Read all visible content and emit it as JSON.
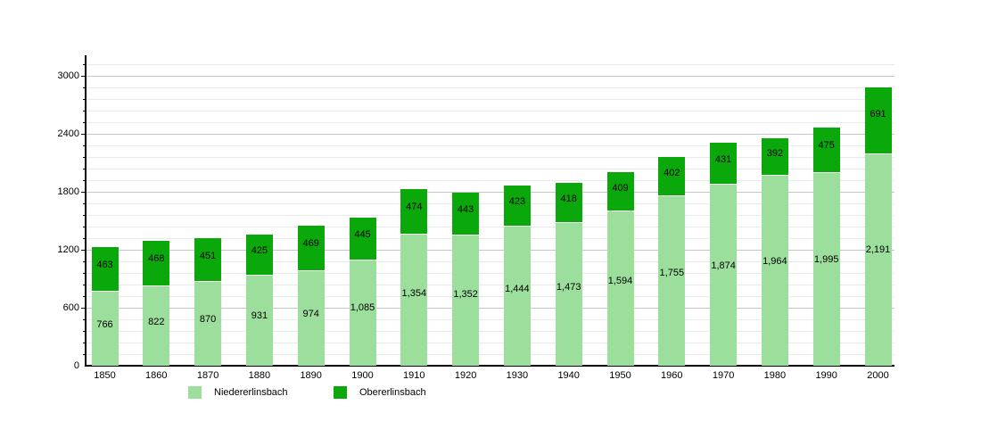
{
  "chart_data": {
    "type": "bar",
    "stacked": true,
    "title": "",
    "xlabel": "",
    "ylabel": "",
    "categories": [
      "1850",
      "1860",
      "1870",
      "1880",
      "1890",
      "1900",
      "1910",
      "1920",
      "1930",
      "1940",
      "1950",
      "1960",
      "1970",
      "1980",
      "1990",
      "2000"
    ],
    "series": [
      {
        "name": "Niedererlinsbach",
        "color": "#9CDF9C",
        "values": [
          766,
          822,
          870,
          931,
          974,
          1085,
          1354,
          1352,
          1444,
          1473,
          1594,
          1755,
          1874,
          1964,
          1995,
          2191
        ],
        "labels": [
          "766",
          "822",
          "870",
          "931",
          "974",
          "1,085",
          "1,354",
          "1,352",
          "1,444",
          "1,473",
          "1,594",
          "1,755",
          "1,874",
          "1,964",
          "1,995",
          "2,191"
        ]
      },
      {
        "name": "Obererlinsbach",
        "color": "#0BA80B",
        "values": [
          463,
          468,
          451,
          425,
          469,
          445,
          474,
          443,
          423,
          418,
          409,
          402,
          431,
          392,
          475,
          691
        ],
        "labels": [
          "463",
          "468",
          "451",
          "425",
          "469",
          "445",
          "474",
          "443",
          "423",
          "418",
          "409",
          "402",
          "431",
          "392",
          "475",
          "691"
        ]
      }
    ],
    "ylim": [
      0,
      3120
    ],
    "y_major_ticks": [
      0,
      600,
      1200,
      1800,
      2400,
      3000
    ],
    "y_major_tick_labels": [
      "0",
      "600",
      "1200",
      "1800",
      "2400",
      "3000"
    ],
    "y_minor_step": 120,
    "grid": true,
    "legend_position": "bottom"
  },
  "legend": {
    "items": [
      {
        "label": "Niedererlinsbach",
        "color": "#9CDF9C"
      },
      {
        "label": "Obererlinsbach",
        "color": "#0BA80B"
      }
    ]
  }
}
